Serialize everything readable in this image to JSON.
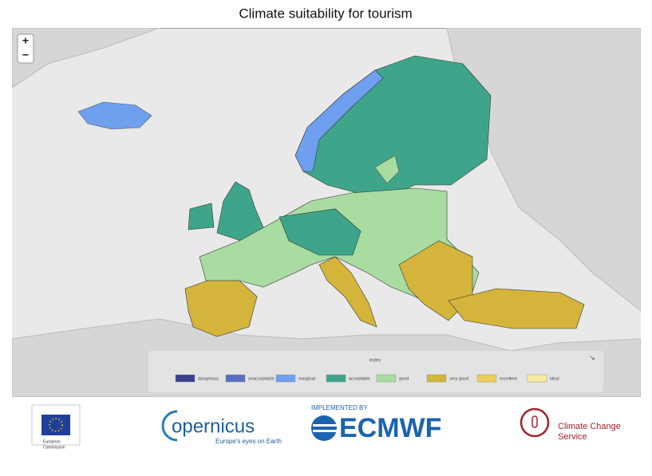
{
  "header": {
    "title": "Climate suitability for tourism"
  },
  "map": {
    "zoom_in": "+",
    "zoom_out": "−"
  },
  "legend": {
    "title": "index",
    "items": [
      {
        "label": "dangerous",
        "color": "#3b3f8c"
      },
      {
        "label": "unacceptable",
        "color": "#5a6fbf"
      },
      {
        "label": "marginal",
        "color": "#6fa0f0"
      },
      {
        "label": "acceptable",
        "color": "#3fa58a"
      },
      {
        "label": "good",
        "color": "#a8dca0"
      },
      {
        "label": "very good",
        "color": "#d4b43a"
      },
      {
        "label": "excellent",
        "color": "#f0cd55"
      },
      {
        "label": "ideal",
        "color": "#f8eaa0"
      }
    ]
  },
  "logos": {
    "european_commission": [
      "European",
      "Commission"
    ],
    "copernicus": {
      "wordmark": "opernicus",
      "tagline": "Europe's eyes on Earth"
    },
    "ecmwf": {
      "caption": "IMPLEMENTED BY",
      "name": "ECMWF"
    },
    "c3s": [
      "Climate Change",
      "Service"
    ]
  }
}
